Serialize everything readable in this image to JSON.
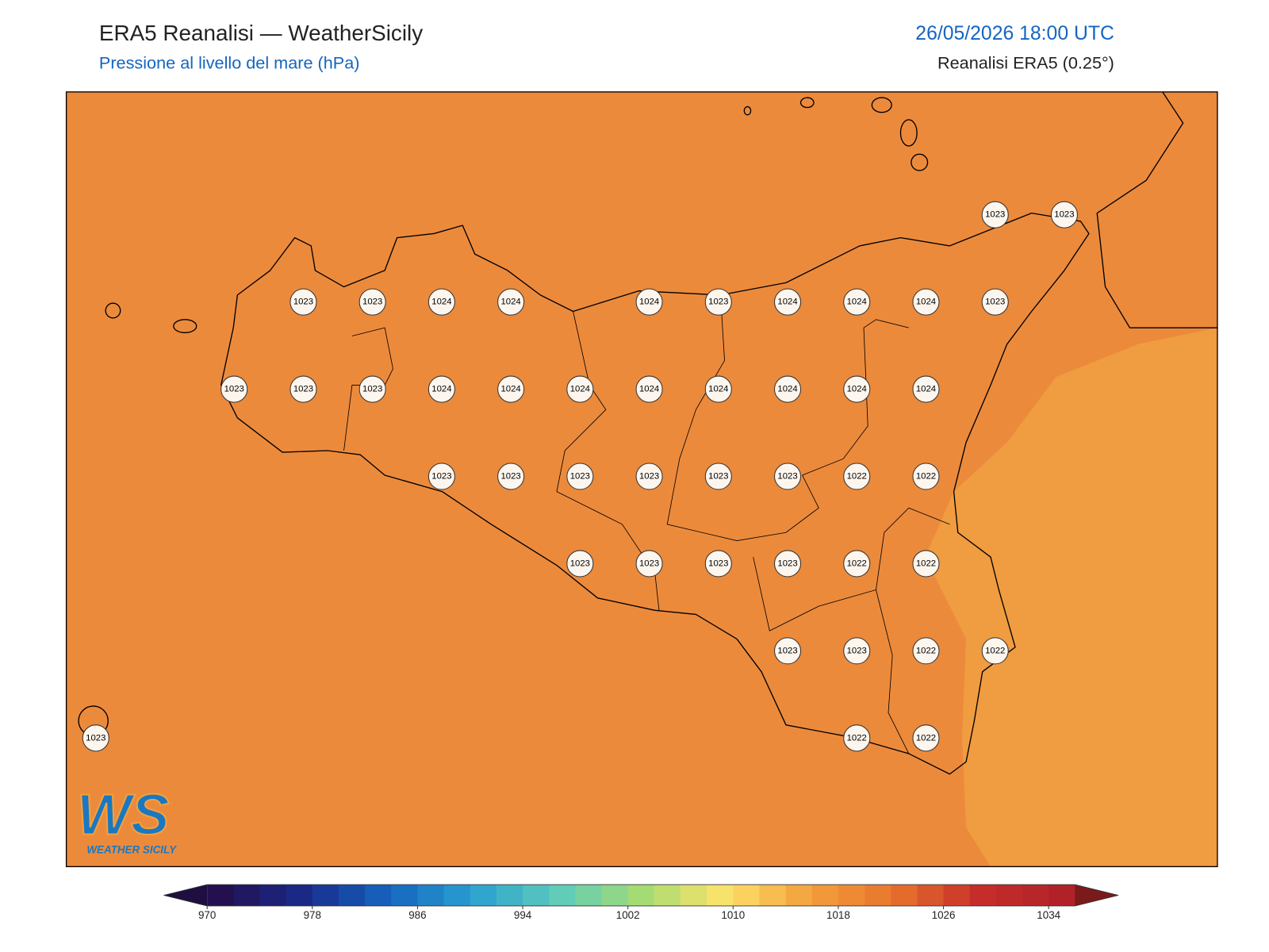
{
  "header": {
    "title": "ERA5 Reanalisi — WeatherSicily",
    "subtitle": "Pressione al livello del mare (hPa)",
    "datetime": "26/05/2026 18:00 UTC",
    "source": "Reanalisi ERA5 (0.25°)"
  },
  "map": {
    "fill_color": "#ec8a3c",
    "light_fill_color": "#f09c40",
    "pressure_grid": [
      [
        null,
        null,
        null,
        null,
        null,
        null,
        null,
        null,
        null,
        null,
        null,
        null,
        null,
        1023,
        1023
      ],
      [
        null,
        null,
        null,
        1023,
        1023,
        1024,
        1024,
        null,
        1024,
        1023,
        1024,
        1024,
        1024,
        1023,
        null
      ],
      [
        null,
        null,
        1023,
        1023,
        1023,
        1024,
        1024,
        1024,
        1024,
        1024,
        1024,
        1024,
        1024,
        null,
        null
      ],
      [
        null,
        null,
        null,
        null,
        null,
        1023,
        1023,
        1023,
        1023,
        1023,
        1023,
        1022,
        1022,
        null,
        null
      ],
      [
        null,
        null,
        null,
        null,
        null,
        null,
        null,
        1023,
        1023,
        1023,
        1023,
        1022,
        1022,
        null,
        null
      ],
      [
        null,
        null,
        null,
        null,
        null,
        null,
        null,
        null,
        null,
        null,
        1023,
        1023,
        1022,
        1022,
        null
      ],
      [
        1023,
        null,
        null,
        null,
        null,
        null,
        null,
        null,
        null,
        null,
        null,
        1022,
        1022,
        null,
        null
      ]
    ]
  },
  "colorbar": {
    "range": [
      970,
      1036
    ],
    "step": 2,
    "ticks": [
      970,
      978,
      986,
      994,
      1002,
      1010,
      1018,
      1026,
      1034
    ],
    "colors": [
      "#23104f",
      "#1a2a8a",
      "#1565c0",
      "#2aa0d0",
      "#5ccbbb",
      "#a4dc73",
      "#fde36a",
      "#f3a03c",
      "#e8742c",
      "#c62e2a",
      "#b02228"
    ],
    "under_color": "#1e0f40",
    "over_color": "#7a1a1a"
  },
  "logo": {
    "mark": "WS",
    "text": "WEATHER SICILY"
  }
}
